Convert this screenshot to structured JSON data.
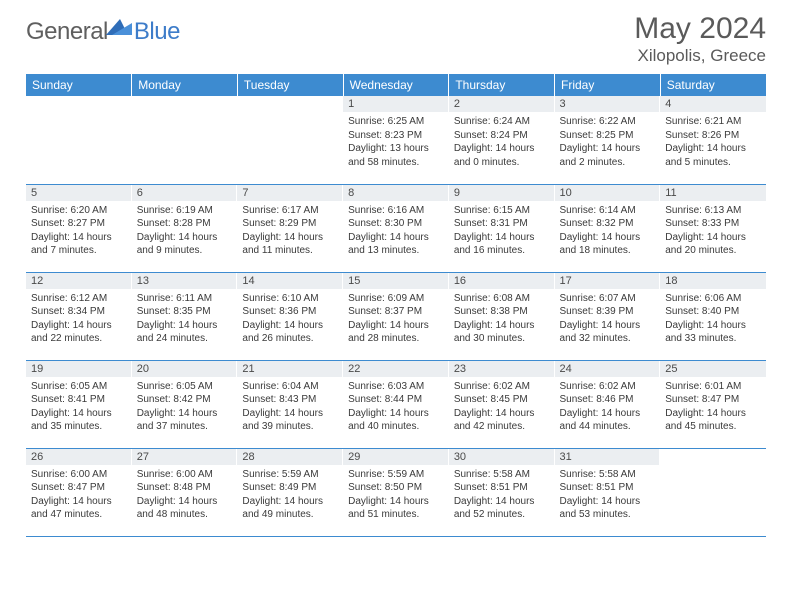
{
  "brand": {
    "part1": "General",
    "part2": "Blue"
  },
  "title": "May 2024",
  "location": "Xilopolis, Greece",
  "colors": {
    "header_bg": "#3d8bd0",
    "header_text": "#ffffff",
    "daynum_bg": "#ebeef1",
    "border": "#3d8bd0",
    "text": "#3a3a3a",
    "title": "#5a5a5a",
    "logo_gray": "#5f5f5f",
    "logo_blue": "#3d7cc9"
  },
  "weekdays": [
    "Sunday",
    "Monday",
    "Tuesday",
    "Wednesday",
    "Thursday",
    "Friday",
    "Saturday"
  ],
  "weeks": [
    [
      {
        "n": "",
        "lines": []
      },
      {
        "n": "",
        "lines": []
      },
      {
        "n": "",
        "lines": []
      },
      {
        "n": "1",
        "lines": [
          "Sunrise: 6:25 AM",
          "Sunset: 8:23 PM",
          "Daylight: 13 hours",
          "and 58 minutes."
        ]
      },
      {
        "n": "2",
        "lines": [
          "Sunrise: 6:24 AM",
          "Sunset: 8:24 PM",
          "Daylight: 14 hours",
          "and 0 minutes."
        ]
      },
      {
        "n": "3",
        "lines": [
          "Sunrise: 6:22 AM",
          "Sunset: 8:25 PM",
          "Daylight: 14 hours",
          "and 2 minutes."
        ]
      },
      {
        "n": "4",
        "lines": [
          "Sunrise: 6:21 AM",
          "Sunset: 8:26 PM",
          "Daylight: 14 hours",
          "and 5 minutes."
        ]
      }
    ],
    [
      {
        "n": "5",
        "lines": [
          "Sunrise: 6:20 AM",
          "Sunset: 8:27 PM",
          "Daylight: 14 hours",
          "and 7 minutes."
        ]
      },
      {
        "n": "6",
        "lines": [
          "Sunrise: 6:19 AM",
          "Sunset: 8:28 PM",
          "Daylight: 14 hours",
          "and 9 minutes."
        ]
      },
      {
        "n": "7",
        "lines": [
          "Sunrise: 6:17 AM",
          "Sunset: 8:29 PM",
          "Daylight: 14 hours",
          "and 11 minutes."
        ]
      },
      {
        "n": "8",
        "lines": [
          "Sunrise: 6:16 AM",
          "Sunset: 8:30 PM",
          "Daylight: 14 hours",
          "and 13 minutes."
        ]
      },
      {
        "n": "9",
        "lines": [
          "Sunrise: 6:15 AM",
          "Sunset: 8:31 PM",
          "Daylight: 14 hours",
          "and 16 minutes."
        ]
      },
      {
        "n": "10",
        "lines": [
          "Sunrise: 6:14 AM",
          "Sunset: 8:32 PM",
          "Daylight: 14 hours",
          "and 18 minutes."
        ]
      },
      {
        "n": "11",
        "lines": [
          "Sunrise: 6:13 AM",
          "Sunset: 8:33 PM",
          "Daylight: 14 hours",
          "and 20 minutes."
        ]
      }
    ],
    [
      {
        "n": "12",
        "lines": [
          "Sunrise: 6:12 AM",
          "Sunset: 8:34 PM",
          "Daylight: 14 hours",
          "and 22 minutes."
        ]
      },
      {
        "n": "13",
        "lines": [
          "Sunrise: 6:11 AM",
          "Sunset: 8:35 PM",
          "Daylight: 14 hours",
          "and 24 minutes."
        ]
      },
      {
        "n": "14",
        "lines": [
          "Sunrise: 6:10 AM",
          "Sunset: 8:36 PM",
          "Daylight: 14 hours",
          "and 26 minutes."
        ]
      },
      {
        "n": "15",
        "lines": [
          "Sunrise: 6:09 AM",
          "Sunset: 8:37 PM",
          "Daylight: 14 hours",
          "and 28 minutes."
        ]
      },
      {
        "n": "16",
        "lines": [
          "Sunrise: 6:08 AM",
          "Sunset: 8:38 PM",
          "Daylight: 14 hours",
          "and 30 minutes."
        ]
      },
      {
        "n": "17",
        "lines": [
          "Sunrise: 6:07 AM",
          "Sunset: 8:39 PM",
          "Daylight: 14 hours",
          "and 32 minutes."
        ]
      },
      {
        "n": "18",
        "lines": [
          "Sunrise: 6:06 AM",
          "Sunset: 8:40 PM",
          "Daylight: 14 hours",
          "and 33 minutes."
        ]
      }
    ],
    [
      {
        "n": "19",
        "lines": [
          "Sunrise: 6:05 AM",
          "Sunset: 8:41 PM",
          "Daylight: 14 hours",
          "and 35 minutes."
        ]
      },
      {
        "n": "20",
        "lines": [
          "Sunrise: 6:05 AM",
          "Sunset: 8:42 PM",
          "Daylight: 14 hours",
          "and 37 minutes."
        ]
      },
      {
        "n": "21",
        "lines": [
          "Sunrise: 6:04 AM",
          "Sunset: 8:43 PM",
          "Daylight: 14 hours",
          "and 39 minutes."
        ]
      },
      {
        "n": "22",
        "lines": [
          "Sunrise: 6:03 AM",
          "Sunset: 8:44 PM",
          "Daylight: 14 hours",
          "and 40 minutes."
        ]
      },
      {
        "n": "23",
        "lines": [
          "Sunrise: 6:02 AM",
          "Sunset: 8:45 PM",
          "Daylight: 14 hours",
          "and 42 minutes."
        ]
      },
      {
        "n": "24",
        "lines": [
          "Sunrise: 6:02 AM",
          "Sunset: 8:46 PM",
          "Daylight: 14 hours",
          "and 44 minutes."
        ]
      },
      {
        "n": "25",
        "lines": [
          "Sunrise: 6:01 AM",
          "Sunset: 8:47 PM",
          "Daylight: 14 hours",
          "and 45 minutes."
        ]
      }
    ],
    [
      {
        "n": "26",
        "lines": [
          "Sunrise: 6:00 AM",
          "Sunset: 8:47 PM",
          "Daylight: 14 hours",
          "and 47 minutes."
        ]
      },
      {
        "n": "27",
        "lines": [
          "Sunrise: 6:00 AM",
          "Sunset: 8:48 PM",
          "Daylight: 14 hours",
          "and 48 minutes."
        ]
      },
      {
        "n": "28",
        "lines": [
          "Sunrise: 5:59 AM",
          "Sunset: 8:49 PM",
          "Daylight: 14 hours",
          "and 49 minutes."
        ]
      },
      {
        "n": "29",
        "lines": [
          "Sunrise: 5:59 AM",
          "Sunset: 8:50 PM",
          "Daylight: 14 hours",
          "and 51 minutes."
        ]
      },
      {
        "n": "30",
        "lines": [
          "Sunrise: 5:58 AM",
          "Sunset: 8:51 PM",
          "Daylight: 14 hours",
          "and 52 minutes."
        ]
      },
      {
        "n": "31",
        "lines": [
          "Sunrise: 5:58 AM",
          "Sunset: 8:51 PM",
          "Daylight: 14 hours",
          "and 53 minutes."
        ]
      },
      {
        "n": "",
        "lines": []
      }
    ]
  ]
}
